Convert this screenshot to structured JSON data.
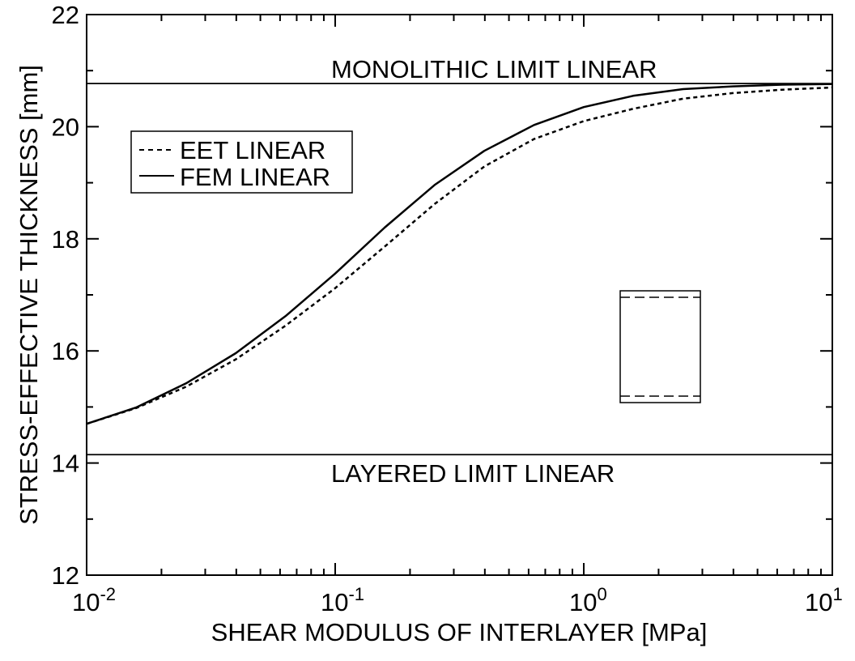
{
  "chart_data": {
    "type": "line",
    "xlabel": "SHEAR MODULUS OF INTERLAYER [MPa]",
    "ylabel": "STRESS-EFFECTIVE THICKNESS [mm]",
    "x_scale": "log",
    "xlim": [
      0.01,
      10
    ],
    "ylim": [
      12,
      22
    ],
    "x_ticks": [
      {
        "value": 0.01,
        "base": "10",
        "exp": "-2"
      },
      {
        "value": 0.1,
        "base": "10",
        "exp": "-1"
      },
      {
        "value": 1,
        "base": "10",
        "exp": "0"
      },
      {
        "value": 10,
        "base": "10",
        "exp": "1"
      }
    ],
    "y_ticks": [
      "12",
      "14",
      "16",
      "18",
      "20",
      "22"
    ],
    "grid": false,
    "legend_position": "top-left",
    "series": [
      {
        "name": "EET LINEAR",
        "style": "dashed",
        "color": "#000000",
        "x": [
          0.01,
          0.0158,
          0.0251,
          0.0398,
          0.0631,
          0.1,
          0.158,
          0.251,
          0.398,
          0.631,
          1.0,
          1.58,
          2.51,
          3.98,
          6.31,
          10.0
        ],
        "y": [
          14.7,
          14.98,
          15.36,
          15.85,
          16.45,
          17.12,
          17.86,
          18.62,
          19.29,
          19.78,
          20.1,
          20.32,
          20.5,
          20.6,
          20.66,
          20.7
        ]
      },
      {
        "name": "FEM LINEAR",
        "style": "solid",
        "color": "#000000",
        "x": [
          0.01,
          0.0158,
          0.0251,
          0.0398,
          0.0631,
          0.1,
          0.158,
          0.251,
          0.398,
          0.631,
          1.0,
          1.58,
          2.51,
          3.98,
          6.31,
          10.0
        ],
        "y": [
          14.7,
          14.99,
          15.42,
          15.96,
          16.62,
          17.38,
          18.2,
          18.96,
          19.57,
          20.03,
          20.35,
          20.55,
          20.67,
          20.72,
          20.75,
          20.76
        ]
      }
    ],
    "reference_lines": [
      {
        "y": 20.77,
        "label": "MONOLITHIC LIMIT LINEAR"
      },
      {
        "y": 14.15,
        "label": "LAYERED LIMIT LINEAR"
      }
    ]
  }
}
